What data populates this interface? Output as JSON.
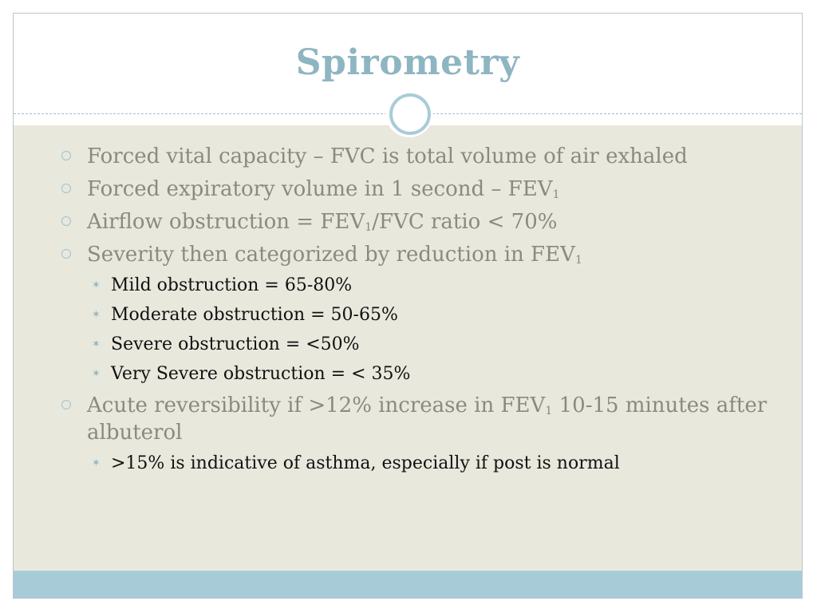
{
  "slide": {
    "title": "Spirometry"
  },
  "bullets": [
    {
      "level": 1,
      "parts": [
        "Forced vital capacity – FVC is total volume of air exhaled"
      ]
    },
    {
      "level": 1,
      "parts": [
        "Forced expiratory volume in 1 second – FEV",
        "1",
        ""
      ]
    },
    {
      "level": 1,
      "parts": [
        "Airflow obstruction = FEV",
        "1",
        "/FVC ratio < 70%"
      ]
    },
    {
      "level": 1,
      "parts": [
        "Severity then categorized by reduction in FEV",
        "1",
        ""
      ]
    },
    {
      "level": 2,
      "parts": [
        "Mild obstruction = 65-80%"
      ]
    },
    {
      "level": 2,
      "parts": [
        "Moderate obstruction = 50-65%"
      ]
    },
    {
      "level": 2,
      "parts": [
        "Severe obstruction = <50%"
      ]
    },
    {
      "level": 2,
      "parts": [
        "Very Severe obstruction = < 35%"
      ]
    },
    {
      "level": 1,
      "parts": [
        "Acute reversibility if >12% increase in FEV",
        "1",
        " 10-15 minutes after albuterol"
      ]
    },
    {
      "level": 2,
      "parts": [
        ">15% is indicative of asthma, especially if post is normal"
      ]
    }
  ],
  "colors": {
    "title": "#8eb5c2",
    "body_background": "#e9e8dd",
    "footer_band": "#a8ccd7",
    "level1_text": "#8a8a80",
    "level2_text": "#111111"
  },
  "icons": {
    "level1_marker": "hollow-circle-bullet-icon",
    "level2_marker": "star-bullet-icon"
  }
}
